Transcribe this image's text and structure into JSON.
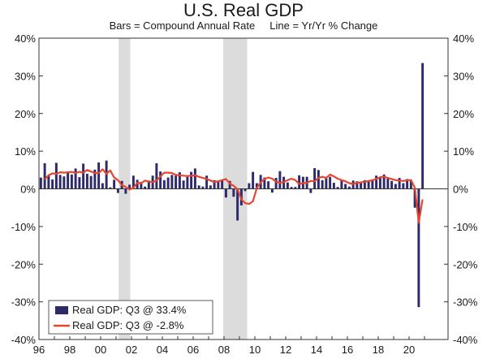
{
  "chart_data": {
    "type": "bar",
    "title": "U.S. Real GDP",
    "subtitle": "Bars = Compound Annual Rate     Line = Yr/Yr % Change",
    "ylim": [
      -40,
      40
    ],
    "y_ticks": [
      40,
      30,
      20,
      10,
      0,
      -10,
      -20,
      -30,
      -40
    ],
    "y_tick_labels": [
      "40%",
      "30%",
      "20%",
      "10%",
      "0%",
      "-10%",
      "-20%",
      "-30%",
      "-40%"
    ],
    "x_start_year": 1996,
    "x_tick_years": [
      1996,
      1998,
      2000,
      2002,
      2004,
      2006,
      2008,
      2010,
      2012,
      2014,
      2016,
      2018,
      2020
    ],
    "x_tick_labels": [
      "96",
      "98",
      "00",
      "02",
      "04",
      "06",
      "08",
      "10",
      "12",
      "14",
      "16",
      "18",
      "20"
    ],
    "recessions": [
      {
        "start": 2001.17,
        "end": 2001.92
      },
      {
        "start": 2007.95,
        "end": 2009.5
      }
    ],
    "series": [
      {
        "name": "Real GDP: Q3 @ 33.4%",
        "kind": "bar",
        "color": "#2d2a6b",
        "values": [
          3.0,
          6.8,
          3.6,
          2.5,
          6.9,
          3.7,
          3.3,
          4.3,
          3.8,
          5.4,
          3.1,
          6.7,
          4.0,
          3.4,
          5.1,
          7.0,
          1.5,
          7.5,
          0.4,
          2.4,
          -1.1,
          2.1,
          -1.3,
          1.1,
          3.5,
          2.4,
          1.8,
          0.6,
          2.2,
          3.5,
          6.8,
          4.6,
          2.3,
          3.0,
          3.7,
          3.5,
          4.4,
          2.2,
          3.2,
          4.5,
          5.4,
          0.9,
          0.6,
          3.5,
          0.9,
          2.3,
          2.2,
          2.5,
          -2.3,
          2.1,
          -2.1,
          -8.4,
          -4.4,
          -0.6,
          1.5,
          4.5,
          1.5,
          3.7,
          3.0,
          2.0,
          -1.0,
          2.9,
          4.7,
          3.2,
          1.7,
          0.5,
          0.5,
          3.6,
          3.2,
          3.2,
          -1.1,
          5.5,
          5.0,
          2.3,
          3.2,
          3.2,
          1.6,
          0.5,
          2.3,
          1.3,
          0.6,
          2.2,
          2.0,
          1.9,
          2.3,
          2.2,
          2.5,
          3.5,
          2.9,
          3.8,
          2.7,
          2.1,
          1.3,
          2.9,
          1.5,
          2.6,
          2.4,
          -5.0,
          -31.4,
          33.4
        ]
      },
      {
        "name": "Real GDP: Q3 @ -2.8%",
        "kind": "line",
        "color": "#e8452f",
        "values": [
          2.5,
          3.6,
          4.1,
          4.0,
          4.4,
          4.3,
          4.4,
          4.5,
          4.2,
          4.5,
          4.3,
          5.0,
          4.6,
          4.2,
          4.2,
          5.2,
          4.0,
          4.9,
          3.0,
          2.3,
          1.0,
          0.5,
          -0.2,
          0.3,
          1.6,
          1.5,
          2.2,
          1.9,
          1.8,
          2.2,
          3.3,
          4.3,
          4.3,
          4.2,
          3.7,
          3.6,
          3.5,
          3.4,
          3.5,
          3.6,
          3.2,
          2.9,
          2.6,
          2.2,
          1.8,
          2.0,
          2.3,
          2.6,
          1.4,
          0.8,
          -0.1,
          -2.8,
          -3.8,
          -4.0,
          -3.3,
          0.2,
          1.7,
          2.6,
          3.0,
          2.7,
          1.9,
          1.6,
          1.8,
          2.3,
          2.7,
          2.3,
          1.3,
          1.5,
          1.6,
          2.1,
          2.0,
          2.9,
          3.2,
          2.9,
          3.8,
          3.3,
          2.7,
          2.3,
          2.0,
          1.5,
          1.3,
          1.6,
          1.7,
          1.9,
          2.1,
          2.3,
          2.6,
          3.1,
          3.2,
          2.9,
          2.6,
          2.3,
          2.2,
          2.1,
          2.3,
          2.3,
          0.3,
          -9.0,
          -2.8
        ]
      }
    ]
  }
}
